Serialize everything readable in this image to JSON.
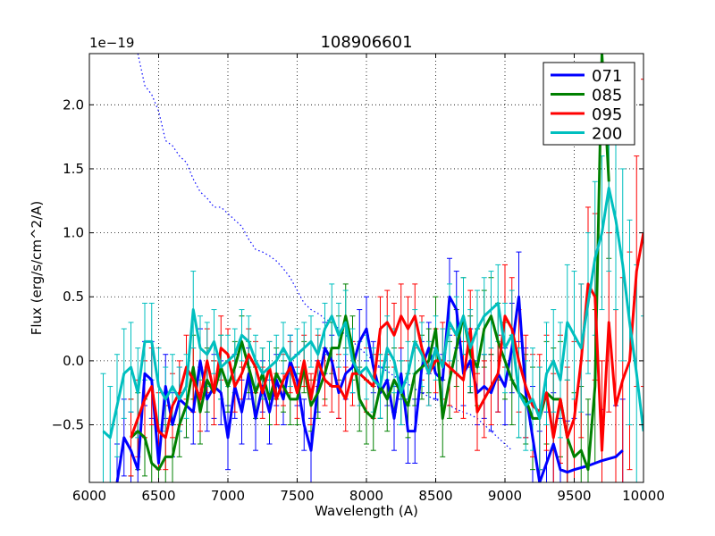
{
  "chart_data": {
    "type": "line",
    "title": "108906601",
    "xlabel": "Wavelength (A)",
    "ylabel": "Flux (erg/s/cm^2/A)",
    "offset_label": "1e−19",
    "xlim": [
      6000,
      10000
    ],
    "ylim": [
      -0.95,
      2.4
    ],
    "xticks": [
      6000,
      6500,
      7000,
      7500,
      8000,
      8500,
      9000,
      9500,
      10000
    ],
    "yticks": [
      -0.5,
      0.0,
      0.5,
      1.0,
      1.5,
      2.0
    ],
    "xtick_labels": [
      "6000",
      "6500",
      "7000",
      "7500",
      "8000",
      "8500",
      "9000",
      "9500",
      "10000"
    ],
    "ytick_labels": [
      "−0.5",
      "0.0",
      "0.5",
      "1.0",
      "1.5",
      "2.0"
    ],
    "grid": true,
    "legend_position": "top-right",
    "series": [
      {
        "name": "071",
        "color": "#0000ff",
        "x": [
          6200,
          6250,
          6300,
          6350,
          6400,
          6450,
          6500,
          6550,
          6600,
          6650,
          6700,
          6750,
          6800,
          6850,
          6900,
          6950,
          7000,
          7050,
          7100,
          7150,
          7200,
          7250,
          7300,
          7350,
          7400,
          7450,
          7500,
          7550,
          7600,
          7650,
          7700,
          7750,
          7800,
          7850,
          7900,
          7950,
          8000,
          8050,
          8100,
          8150,
          8200,
          8250,
          8300,
          8350,
          8400,
          8450,
          8500,
          8550,
          8600,
          8650,
          8700,
          8750,
          8800,
          8850,
          8900,
          8950,
          9000,
          9050,
          9100,
          9150,
          9200,
          9250,
          9300,
          9350,
          9400,
          9450,
          9500,
          9600,
          9700,
          9800,
          9850
        ],
        "y": [
          -0.95,
          -0.6,
          -0.7,
          -0.85,
          -0.1,
          -0.15,
          -0.8,
          -0.2,
          -0.5,
          -0.3,
          -0.35,
          -0.4,
          0.0,
          -0.3,
          -0.2,
          -0.25,
          -0.6,
          -0.2,
          -0.4,
          -0.1,
          -0.45,
          -0.2,
          -0.4,
          -0.15,
          -0.3,
          0.0,
          -0.15,
          -0.5,
          -0.7,
          -0.2,
          0.1,
          0.0,
          -0.25,
          -0.1,
          -0.05,
          0.15,
          0.25,
          -0.05,
          -0.25,
          -0.15,
          -0.45,
          -0.1,
          -0.55,
          -0.55,
          -0.05,
          0.1,
          -0.1,
          -0.15,
          0.5,
          0.4,
          -0.1,
          0.0,
          -0.25,
          -0.2,
          -0.25,
          -0.1,
          -0.2,
          0.1,
          0.5,
          -0.25,
          -0.6,
          -0.95,
          -0.8,
          -0.65,
          -0.85,
          -0.87,
          -0.85,
          -0.82,
          -0.78,
          -0.75,
          -0.7
        ],
        "err": [
          0.3,
          0.3,
          0.3,
          0.3,
          0.25,
          0.3,
          0.3,
          0.25,
          0.25,
          0.25,
          0.25,
          0.25,
          0.25,
          0.25,
          0.25,
          0.25,
          0.25,
          0.25,
          0.25,
          0.2,
          0.25,
          0.2,
          0.25,
          0.2,
          0.2,
          0.2,
          0.2,
          0.2,
          0.25,
          0.2,
          0.2,
          0.2,
          0.2,
          0.2,
          0.2,
          0.25,
          0.25,
          0.2,
          0.2,
          0.2,
          0.25,
          0.2,
          0.25,
          0.25,
          0.2,
          0.2,
          0.2,
          0.2,
          0.3,
          0.3,
          0.25,
          0.25,
          0.25,
          0.25,
          0.3,
          0.3,
          0.3,
          0.35,
          0.35,
          0.35,
          0.4,
          0.4,
          0.4,
          0.4,
          0.4,
          0.4,
          0.4,
          0.4,
          0.4,
          0.4,
          0.4
        ]
      },
      {
        "name": "085",
        "color": "#008000",
        "x": [
          6300,
          6350,
          6400,
          6450,
          6500,
          6550,
          6600,
          6650,
          6700,
          6750,
          6800,
          6850,
          6900,
          6950,
          7000,
          7050,
          7100,
          7150,
          7200,
          7250,
          7300,
          7350,
          7400,
          7450,
          7500,
          7550,
          7600,
          7650,
          7700,
          7750,
          7800,
          7850,
          7900,
          7950,
          8000,
          8050,
          8100,
          8150,
          8200,
          8250,
          8300,
          8350,
          8400,
          8450,
          8500,
          8550,
          8600,
          8650,
          8700,
          8750,
          8800,
          8850,
          8900,
          8950,
          9000,
          9050,
          9100,
          9150,
          9200,
          9250,
          9300,
          9350,
          9400,
          9450,
          9500,
          9550,
          9600,
          9650,
          9700,
          9750
        ],
        "y": [
          -0.6,
          -0.55,
          -0.6,
          -0.8,
          -0.85,
          -0.75,
          -0.75,
          -0.5,
          -0.35,
          -0.05,
          -0.4,
          -0.15,
          -0.25,
          -0.05,
          -0.2,
          -0.05,
          0.15,
          -0.05,
          -0.25,
          -0.1,
          -0.3,
          -0.1,
          -0.2,
          -0.3,
          -0.3,
          -0.05,
          -0.35,
          -0.25,
          -0.1,
          0.1,
          0.1,
          0.35,
          0.1,
          -0.3,
          -0.4,
          -0.45,
          -0.2,
          -0.3,
          -0.15,
          -0.25,
          -0.35,
          -0.1,
          -0.05,
          0.0,
          0.25,
          -0.45,
          -0.15,
          0.1,
          0.35,
          0.05,
          -0.05,
          0.25,
          0.35,
          0.15,
          0.0,
          -0.15,
          -0.25,
          -0.3,
          -0.45,
          -0.45,
          -0.25,
          -0.3,
          -0.3,
          -0.6,
          -0.75,
          -0.7,
          -0.85,
          -0.2,
          2.4,
          1.4
        ],
        "err": [
          0.3,
          0.3,
          0.3,
          0.3,
          0.3,
          0.25,
          0.25,
          0.25,
          0.25,
          0.25,
          0.25,
          0.25,
          0.25,
          0.25,
          0.2,
          0.2,
          0.2,
          0.2,
          0.2,
          0.2,
          0.2,
          0.2,
          0.2,
          0.2,
          0.2,
          0.2,
          0.2,
          0.2,
          0.2,
          0.2,
          0.25,
          0.25,
          0.25,
          0.25,
          0.25,
          0.25,
          0.25,
          0.25,
          0.25,
          0.25,
          0.25,
          0.25,
          0.25,
          0.25,
          0.25,
          0.3,
          0.3,
          0.3,
          0.3,
          0.3,
          0.3,
          0.3,
          0.3,
          0.3,
          0.3,
          0.35,
          0.35,
          0.35,
          0.4,
          0.4,
          0.4,
          0.4,
          0.45,
          0.45,
          0.5,
          0.5,
          0.55,
          0.6,
          0.6,
          0.6
        ]
      },
      {
        "name": "095",
        "color": "#ff0000",
        "x": [
          6300,
          6350,
          6400,
          6450,
          6500,
          6550,
          6600,
          6650,
          6700,
          6750,
          6800,
          6850,
          6900,
          6950,
          7000,
          7050,
          7100,
          7150,
          7200,
          7250,
          7300,
          7350,
          7400,
          7450,
          7500,
          7550,
          7600,
          7650,
          7700,
          7750,
          7800,
          7850,
          7900,
          7950,
          8000,
          8050,
          8100,
          8150,
          8200,
          8250,
          8300,
          8350,
          8400,
          8450,
          8500,
          8550,
          8600,
          8650,
          8700,
          8750,
          8800,
          8850,
          8900,
          8950,
          9000,
          9050,
          9100,
          9150,
          9200,
          9250,
          9300,
          9350,
          9400,
          9450,
          9500,
          9550,
          9600,
          9650,
          9700,
          9750,
          9800,
          9850,
          9900,
          9950,
          10000
        ],
        "y": [
          -0.6,
          -0.45,
          -0.3,
          -0.2,
          -0.55,
          -0.6,
          -0.35,
          -0.25,
          -0.05,
          -0.15,
          -0.3,
          0.0,
          -0.25,
          0.1,
          0.05,
          -0.2,
          -0.1,
          0.05,
          -0.05,
          -0.25,
          -0.05,
          -0.3,
          -0.15,
          -0.05,
          -0.25,
          0.0,
          -0.3,
          0.0,
          -0.15,
          -0.2,
          -0.2,
          -0.3,
          -0.1,
          -0.1,
          -0.15,
          -0.2,
          0.25,
          0.3,
          0.2,
          0.35,
          0.25,
          0.35,
          0.1,
          -0.1,
          0.0,
          0.0,
          -0.05,
          -0.1,
          -0.15,
          0.25,
          -0.4,
          -0.3,
          -0.2,
          -0.1,
          0.35,
          0.25,
          0.0,
          -0.2,
          -0.35,
          -0.4,
          -0.25,
          -0.6,
          -0.3,
          -0.6,
          -0.45,
          0.0,
          0.6,
          0.5,
          -0.7,
          0.3,
          -0.35,
          -0.15,
          0.0,
          0.7,
          1.0
        ],
        "err": [
          0.3,
          0.3,
          0.3,
          0.3,
          0.3,
          0.25,
          0.25,
          0.25,
          0.25,
          0.25,
          0.25,
          0.25,
          0.25,
          0.25,
          0.2,
          0.2,
          0.2,
          0.2,
          0.2,
          0.2,
          0.2,
          0.2,
          0.2,
          0.2,
          0.2,
          0.2,
          0.2,
          0.2,
          0.2,
          0.2,
          0.25,
          0.25,
          0.25,
          0.25,
          0.25,
          0.25,
          0.25,
          0.25,
          0.25,
          0.25,
          0.25,
          0.25,
          0.25,
          0.25,
          0.25,
          0.3,
          0.3,
          0.3,
          0.3,
          0.3,
          0.3,
          0.3,
          0.3,
          0.3,
          0.4,
          0.4,
          0.4,
          0.4,
          0.4,
          0.45,
          0.45,
          0.5,
          0.5,
          0.55,
          0.6,
          0.6,
          0.6,
          0.65,
          0.7,
          0.7,
          0.75,
          0.8,
          0.85,
          0.9,
          1.2
        ]
      },
      {
        "name": "200",
        "color": "#00bfbf",
        "x": [
          6100,
          6150,
          6200,
          6250,
          6300,
          6350,
          6400,
          6450,
          6500,
          6550,
          6600,
          6650,
          6700,
          6750,
          6800,
          6850,
          6900,
          6950,
          7000,
          7050,
          7100,
          7150,
          7200,
          7250,
          7300,
          7350,
          7400,
          7450,
          7500,
          7550,
          7600,
          7650,
          7700,
          7750,
          7800,
          7850,
          7900,
          7950,
          8000,
          8050,
          8100,
          8150,
          8200,
          8250,
          8300,
          8350,
          8400,
          8450,
          8500,
          8550,
          8600,
          8650,
          8700,
          8750,
          8800,
          8850,
          8900,
          8950,
          9000,
          9050,
          9100,
          9150,
          9200,
          9250,
          9300,
          9350,
          9400,
          9450,
          9500,
          9550,
          9600,
          9650,
          9700,
          9750,
          9800,
          9850,
          9900,
          9950,
          10000
        ],
        "y": [
          -0.55,
          -0.6,
          -0.35,
          -0.1,
          -0.05,
          -0.25,
          0.15,
          0.15,
          -0.2,
          -0.3,
          -0.2,
          -0.3,
          -0.2,
          0.4,
          0.1,
          0.05,
          0.15,
          -0.05,
          0.0,
          0.05,
          0.2,
          0.15,
          0.0,
          -0.1,
          -0.05,
          0.0,
          0.1,
          0.0,
          0.05,
          0.1,
          0.15,
          0.05,
          0.25,
          0.35,
          0.2,
          0.3,
          0.0,
          -0.1,
          -0.05,
          -0.15,
          -0.2,
          0.1,
          0.0,
          -0.25,
          -0.1,
          0.15,
          0.05,
          -0.1,
          0.1,
          -0.05,
          0.3,
          0.2,
          0.35,
          0.1,
          0.25,
          0.35,
          0.4,
          0.45,
          0.1,
          0.2,
          -0.25,
          -0.35,
          -0.3,
          -0.45,
          -0.1,
          0.0,
          -0.15,
          0.3,
          0.2,
          0.1,
          0.45,
          0.8,
          1.0,
          1.35,
          1.1,
          0.75,
          0.3,
          -0.1,
          -0.55
        ],
        "err": [
          0.45,
          0.4,
          0.4,
          0.35,
          0.35,
          0.35,
          0.3,
          0.3,
          0.3,
          0.25,
          0.25,
          0.25,
          0.25,
          0.3,
          0.25,
          0.25,
          0.25,
          0.25,
          0.2,
          0.2,
          0.2,
          0.2,
          0.2,
          0.2,
          0.2,
          0.2,
          0.2,
          0.2,
          0.2,
          0.2,
          0.2,
          0.2,
          0.2,
          0.25,
          0.25,
          0.25,
          0.25,
          0.25,
          0.25,
          0.25,
          0.25,
          0.25,
          0.25,
          0.25,
          0.25,
          0.25,
          0.25,
          0.25,
          0.25,
          0.3,
          0.3,
          0.3,
          0.3,
          0.3,
          0.3,
          0.3,
          0.3,
          0.3,
          0.35,
          0.35,
          0.35,
          0.35,
          0.4,
          0.4,
          0.4,
          0.4,
          0.45,
          0.45,
          0.5,
          0.5,
          0.55,
          0.6,
          0.6,
          0.65,
          0.7,
          0.75,
          0.8,
          0.85,
          0.9
        ]
      }
    ],
    "reference_curve": {
      "name": "dotted-reference",
      "color": "#0000ff",
      "style": "dotted",
      "x": [
        6350,
        6400,
        6450,
        6500,
        6550,
        6600,
        6650,
        6700,
        6750,
        6800,
        6850,
        6900,
        6950,
        7000,
        7050,
        7100,
        7150,
        7200,
        7250,
        7300,
        7350,
        7400,
        7450,
        7500,
        7550,
        7600,
        7650,
        7700,
        7750,
        7800,
        7850,
        7900,
        7950,
        8000,
        8050,
        8100,
        8150,
        8200,
        8250,
        8300,
        8350,
        8400,
        8450,
        8500,
        8550,
        8600,
        8650,
        8700,
        8750,
        8800,
        8850,
        8900,
        8950,
        9000,
        9050
      ],
      "y": [
        2.4,
        2.15,
        2.08,
        1.95,
        1.72,
        1.68,
        1.6,
        1.55,
        1.42,
        1.32,
        1.27,
        1.2,
        1.2,
        1.15,
        1.1,
        1.05,
        0.95,
        0.87,
        0.85,
        0.82,
        0.78,
        0.72,
        0.65,
        0.55,
        0.45,
        0.4,
        0.37,
        0.33,
        0.3,
        0.25,
        0.2,
        0.15,
        0.1,
        0.05,
        0.0,
        -0.05,
        -0.08,
        -0.12,
        -0.15,
        -0.18,
        -0.22,
        -0.25,
        -0.28,
        -0.3,
        -0.33,
        -0.35,
        -0.38,
        -0.4,
        -0.42,
        -0.45,
        -0.5,
        -0.55,
        -0.6,
        -0.65,
        -0.7
      ]
    }
  }
}
